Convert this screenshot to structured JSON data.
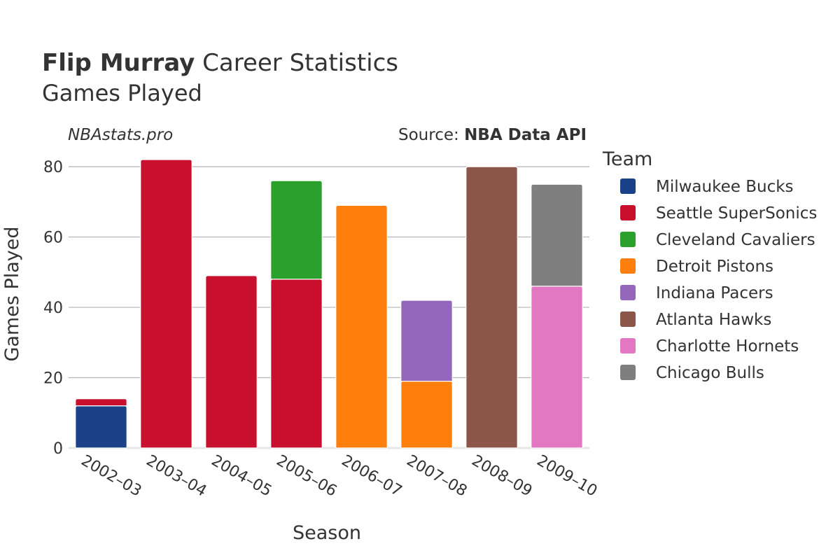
{
  "header": {
    "title_bold": "Flip Murray",
    "title_rest": " Career Statistics",
    "subtitle": "Games Played",
    "watermark": "NBAstats.pro",
    "source_label": "Source: ",
    "source_value": "NBA Data API"
  },
  "legend": {
    "title": "Team"
  },
  "chart_data": {
    "type": "bar",
    "stacked": true,
    "title": "Flip Murray Career Statistics",
    "subtitle": "Games Played",
    "xlabel": "Season",
    "ylabel": "Games Played",
    "ylim": [
      0,
      84
    ],
    "yticks": [
      0,
      20,
      40,
      60,
      80
    ],
    "grid": true,
    "legend_position": "right",
    "categories": [
      "2002–03",
      "2003–04",
      "2004–05",
      "2005–06",
      "2006–07",
      "2007–08",
      "2008–09",
      "2009–10"
    ],
    "series": [
      {
        "name": "Milwaukee Bucks",
        "color": "#1b4189",
        "values": [
          12,
          0,
          0,
          0,
          0,
          0,
          0,
          0
        ]
      },
      {
        "name": "Seattle SuperSonics",
        "color": "#c8102e",
        "values": [
          2,
          82,
          49,
          48,
          0,
          0,
          0,
          0
        ]
      },
      {
        "name": "Cleveland Cavaliers",
        "color": "#2ca02c",
        "values": [
          0,
          0,
          0,
          28,
          0,
          0,
          0,
          0
        ]
      },
      {
        "name": "Detroit Pistons",
        "color": "#ff7f0e",
        "values": [
          0,
          0,
          0,
          0,
          69,
          19,
          0,
          0
        ]
      },
      {
        "name": "Indiana Pacers",
        "color": "#9467bd",
        "values": [
          0,
          0,
          0,
          0,
          0,
          23,
          0,
          0
        ]
      },
      {
        "name": "Atlanta Hawks",
        "color": "#8c564b",
        "values": [
          0,
          0,
          0,
          0,
          0,
          0,
          80,
          0
        ]
      },
      {
        "name": "Charlotte Hornets",
        "color": "#e377c2",
        "values": [
          0,
          0,
          0,
          0,
          0,
          0,
          0,
          46
        ]
      },
      {
        "name": "Chicago Bulls",
        "color": "#7f7f7f",
        "values": [
          0,
          0,
          0,
          0,
          0,
          0,
          0,
          29
        ]
      }
    ]
  }
}
